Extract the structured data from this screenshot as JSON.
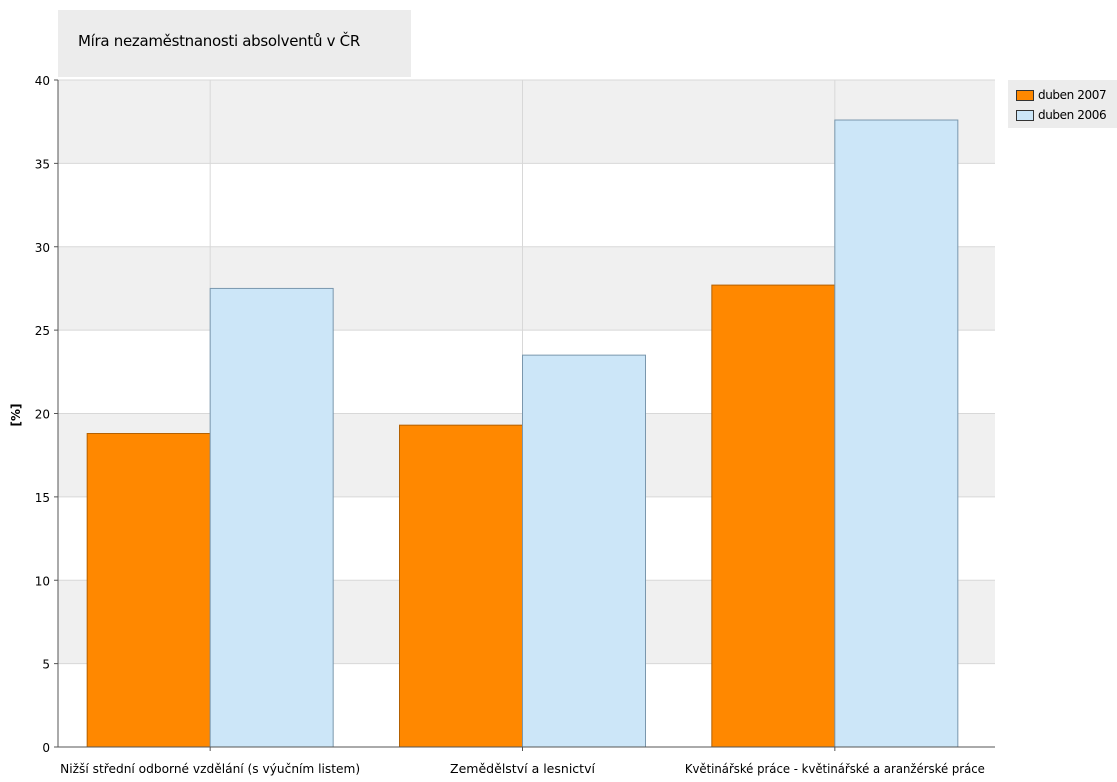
{
  "chart_data": {
    "type": "bar",
    "title": "Míra nezaměstnanosti absolventů v ČR",
    "ylabel": "[%]",
    "xlabel": "",
    "ylim": [
      0,
      40
    ],
    "yticks": [
      0,
      5,
      10,
      15,
      20,
      25,
      30,
      35,
      40
    ],
    "grid": true,
    "legend_position": "top-right",
    "categories": [
      "Nižší střední odborné vzdělání (s výučním listem)",
      "Zemědělství a lesnictví",
      "Květinářské práce - květinářské a aranžérské práce"
    ],
    "series": [
      {
        "name": "duben 2007",
        "color": "#ff8800",
        "values": [
          18.8,
          19.3,
          27.7
        ]
      },
      {
        "name": "duben 2006",
        "color": "#cce6f8",
        "values": [
          27.5,
          23.5,
          37.6
        ]
      }
    ]
  }
}
